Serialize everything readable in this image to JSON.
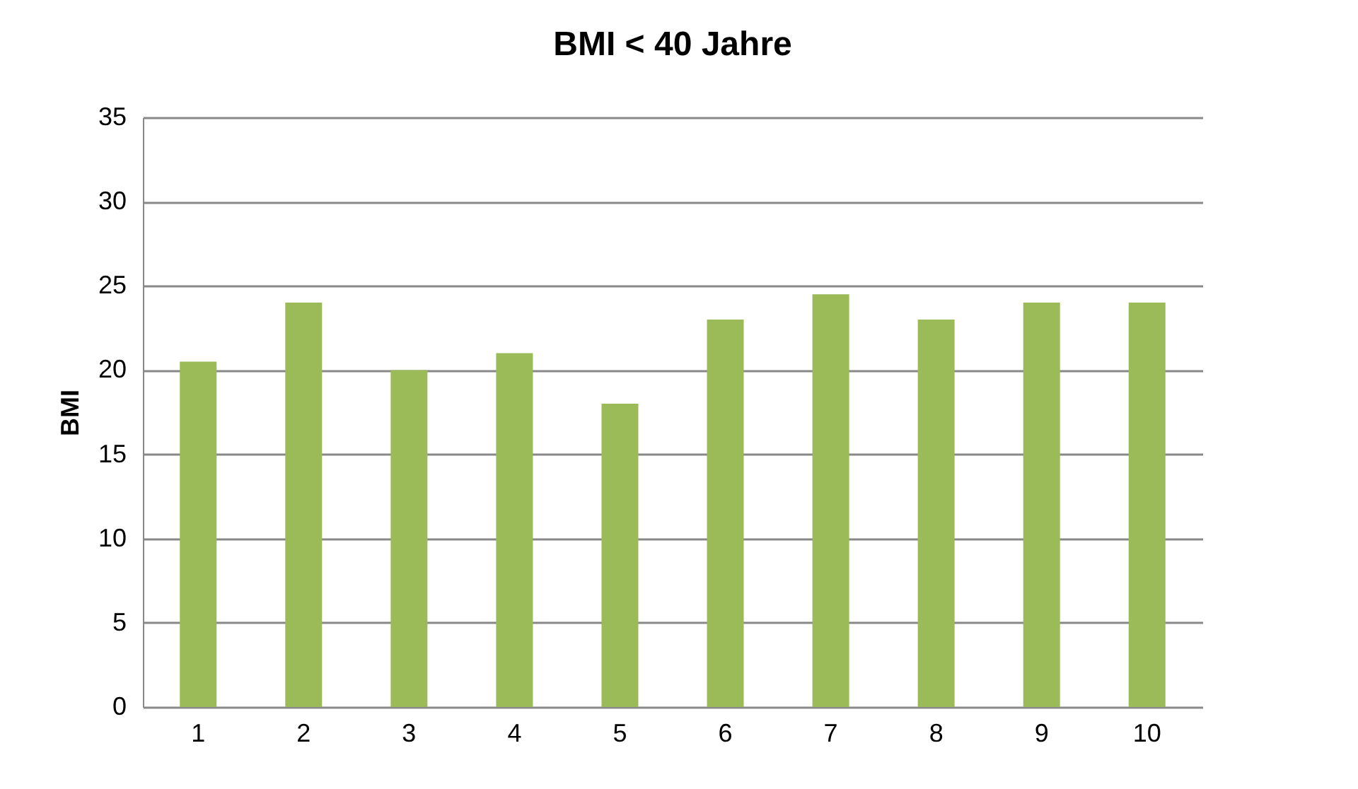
{
  "chart_data": {
    "type": "bar",
    "title": "BMI < 40 Jahre",
    "ylabel": "BMI",
    "categories": [
      "1",
      "2",
      "3",
      "4",
      "5",
      "6",
      "7",
      "8",
      "9",
      "10"
    ],
    "values": [
      20.5,
      24,
      20,
      21,
      18,
      23,
      24.5,
      23,
      24,
      24
    ],
    "color": "#9bbb59",
    "ylim": [
      0,
      35
    ],
    "yticks": [
      0,
      5,
      10,
      15,
      20,
      25,
      30,
      35
    ],
    "grid": "y"
  }
}
